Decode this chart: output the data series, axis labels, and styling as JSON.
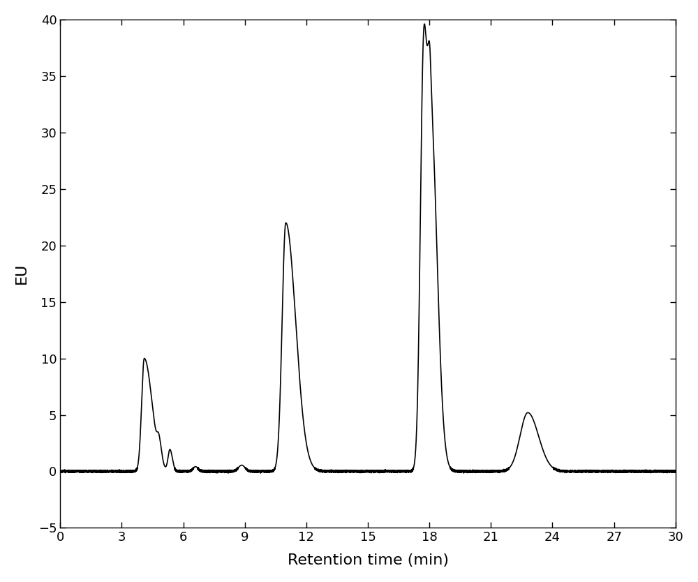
{
  "title": "",
  "xlabel": "Retention time (min)",
  "ylabel": "EU",
  "xlim": [
    0,
    30
  ],
  "ylim": [
    -5,
    40
  ],
  "xticks": [
    0,
    3,
    6,
    9,
    12,
    15,
    18,
    21,
    24,
    27,
    30
  ],
  "yticks": [
    -5,
    0,
    5,
    10,
    15,
    20,
    25,
    30,
    35,
    40
  ],
  "line_color": "#000000",
  "background_color": "#ffffff",
  "line_width": 1.2,
  "noise_amplitude": 0.04
}
